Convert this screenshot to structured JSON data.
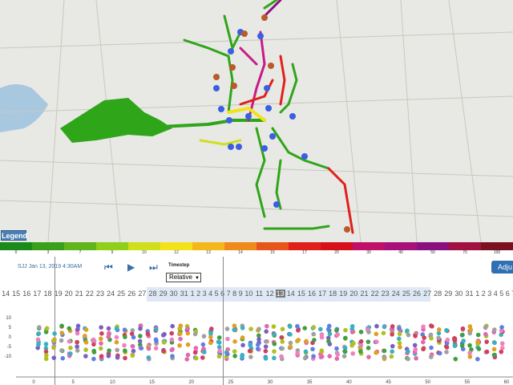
{
  "legend_label": "Legend",
  "colorbar": {
    "labels": [
      "0",
      "3",
      "7",
      "9",
      "10",
      "12",
      "13",
      "14",
      "15",
      "17",
      "20",
      "30",
      "40",
      "50",
      "70",
      "100"
    ],
    "colors": [
      "#1a8a1a",
      "#3aa01a",
      "#5fb51a",
      "#8fcf1a",
      "#cfe01a",
      "#f2e21a",
      "#f5b81a",
      "#f08a1a",
      "#e8551a",
      "#e0201a",
      "#d6101a",
      "#c0106a",
      "#a8107a",
      "#8a1080",
      "#a01040",
      "#7a1020"
    ]
  },
  "controls": {
    "time_label": "SJJ Jan 13, 2019 4:30AM",
    "timestep_label": "Timestep",
    "timestep_value": "Relative",
    "adjust_label": "Adju"
  },
  "days": [
    "14",
    "15",
    "16",
    "17",
    "18",
    "19",
    "20",
    "21",
    "22",
    "23",
    "24",
    "25",
    "26",
    "27",
    "28",
    "29",
    "30",
    "31",
    "1",
    "2",
    "3",
    "4",
    "5",
    "6",
    "7",
    "8",
    "9",
    "10",
    "11",
    "12",
    "13",
    "14",
    "15",
    "16",
    "17",
    "18",
    "19",
    "20",
    "21",
    "22",
    "23",
    "24",
    "25",
    "26",
    "27",
    "28",
    "29",
    "30",
    "31",
    "1",
    "2",
    "3",
    "4",
    "5",
    "6",
    "7"
  ],
  "selected_day_index": 30,
  "scatter": {
    "y_ticks": [
      "10",
      "5",
      "0",
      "-5",
      "-10"
    ],
    "x_ticks": [
      "0",
      "5",
      "10",
      "15",
      "20",
      "25",
      "30",
      "35",
      "40",
      "45",
      "50",
      "55",
      "60"
    ]
  }
}
